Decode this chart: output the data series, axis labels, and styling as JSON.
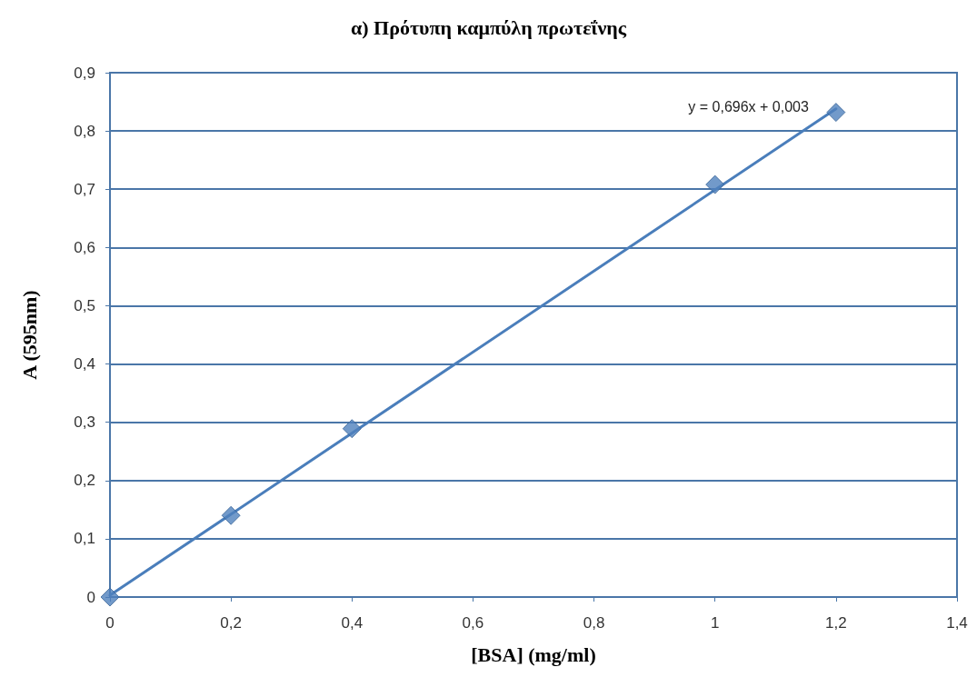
{
  "chart_data": {
    "type": "scatter",
    "title": "α) Πρότυπη καμπύλη πρωτεΐνης",
    "xlabel": "[BSA] (mg/ml)",
    "ylabel": "A (595nm)",
    "series": [
      {
        "color": "#4f81bd",
        "x": [
          0,
          0.2,
          0.4,
          1,
          1.2
        ],
        "values": [
          0,
          0.14,
          0.289,
          0.708,
          0.832
        ],
        "marker": "diamond"
      },
      {
        "type": "line",
        "color": "#4a7ebb",
        "x": [
          0,
          1.2
        ],
        "values": [
          0.003,
          0.838
        ],
        "marker": "none",
        "line_style": "solid"
      }
    ],
    "annotations": [
      "y = 0,696x + 0,003"
    ],
    "xlim": [
      0,
      1.4
    ],
    "xticks": [
      0,
      {
        "value": 0.2,
        "label": "0,2"
      },
      {
        "value": 0.4,
        "label": "0,4"
      },
      {
        "value": 0.6,
        "label": "0,6"
      },
      {
        "value": 0.8,
        "label": "0,8"
      },
      1,
      {
        "value": 1.2,
        "label": "1,2"
      },
      {
        "value": 1.4,
        "label": "1,4"
      }
    ],
    "ylim": [
      0,
      0.9
    ],
    "yticks": [
      0,
      {
        "value": 0.1,
        "label": "0,1"
      },
      {
        "value": 0.2,
        "label": "0,2"
      },
      {
        "value": 0.3,
        "label": "0,3"
      },
      {
        "value": 0.4,
        "label": "0,4"
      },
      {
        "value": 0.5,
        "label": "0,5"
      },
      {
        "value": 0.6,
        "label": "0,6"
      },
      {
        "value": 0.7,
        "label": "0,7"
      },
      {
        "value": 0.8,
        "label": "0,8"
      },
      {
        "value": 0.9,
        "label": "0,9"
      }
    ],
    "grid": "y"
  }
}
